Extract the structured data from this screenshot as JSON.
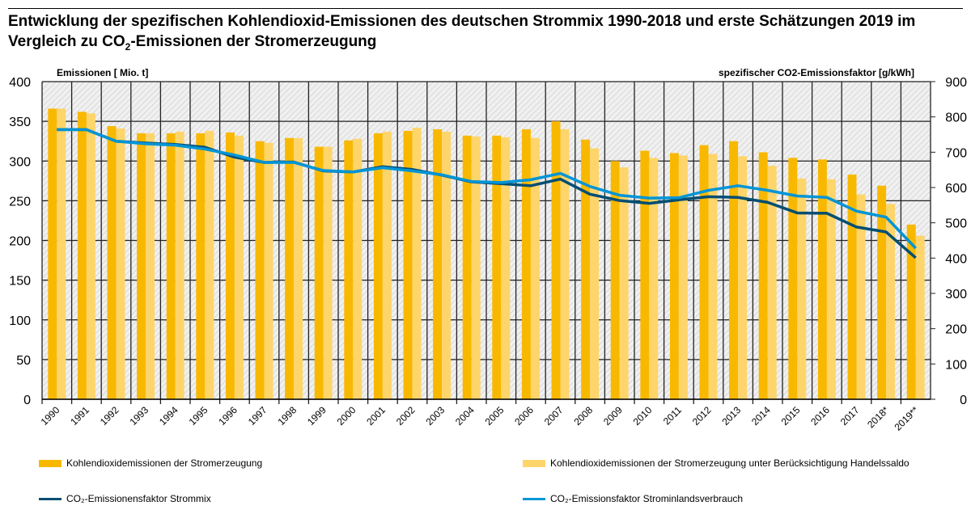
{
  "title_part1": "Entwicklung der spezifischen Kohlendioxid-Emissionen des deutschen Strommix 1990-2018 und erste Schätzungen 2019 im Vergleich zu CO",
  "title_sub": "2",
  "title_part2": "-Emissionen der Stromerzeugung",
  "chart_data": {
    "type": "bar+line",
    "ylabel_left": "Emissionen [ Mio. t]",
    "ylabel_right": "spezifischer CO2-Emissionsfaktor [g/kWh]",
    "ylim_left": [
      0,
      400
    ],
    "ylim_right": [
      0,
      900
    ],
    "yticks_left": [
      0,
      50,
      100,
      150,
      200,
      250,
      300,
      350,
      400
    ],
    "yticks_right": [
      0,
      100,
      200,
      300,
      400,
      500,
      600,
      700,
      800,
      900
    ],
    "grid": true,
    "categories": [
      "1990",
      "1991",
      "1992",
      "1993",
      "1994",
      "1995",
      "1996",
      "1997",
      "1998",
      "1999",
      "2000",
      "2001",
      "2002",
      "2003",
      "2004",
      "2005",
      "2006",
      "2007",
      "2008",
      "2009",
      "2010",
      "2011",
      "2012",
      "2013",
      "2014",
      "2015",
      "2016",
      "2017",
      "2018*",
      "2019**"
    ],
    "bars": [
      {
        "name": "Kohlendioxidemissionen der Stromerzeugung",
        "color": "#f9b800",
        "axis": "left",
        "values": [
          366,
          362,
          344,
          335,
          335,
          335,
          336,
          325,
          329,
          318,
          326,
          335,
          338,
          340,
          332,
          332,
          340,
          350,
          327,
          300,
          313,
          310,
          320,
          325,
          311,
          304,
          302,
          283,
          269,
          220
        ]
      },
      {
        "name": "Kohlendioxidemissionen der Stromerzeugung unter Berücksichtigung Handelssaldo",
        "color": "#fdd56b",
        "axis": "left",
        "values": [
          366,
          360,
          341,
          335,
          337,
          338,
          332,
          323,
          329,
          318,
          328,
          337,
          342,
          337,
          331,
          330,
          329,
          340,
          316,
          292,
          304,
          307,
          309,
          306,
          294,
          278,
          277,
          258,
          246,
          206
        ]
      }
    ],
    "lines": [
      {
        "name": "CO₂-Emissionensfaktor Strommix",
        "color": "#004e73",
        "axis": "right",
        "values": [
          764,
          764,
          731,
          726,
          722,
          714,
          686,
          671,
          672,
          647,
          644,
          659,
          651,
          635,
          616,
          611,
          605,
          624,
          581,
          563,
          555,
          565,
          574,
          572,
          558,
          528,
          527,
          488,
          474,
          401
        ]
      },
      {
        "name": "CO₂-Emissionsfaktor Strominlandsverbrauch",
        "color": "#0095d6",
        "axis": "right",
        "values": [
          764,
          764,
          731,
          724,
          720,
          709,
          692,
          671,
          671,
          648,
          644,
          656,
          647,
          636,
          617,
          614,
          622,
          640,
          603,
          578,
          570,
          571,
          592,
          605,
          592,
          576,
          572,
          533,
          516,
          428
        ]
      }
    ],
    "legend": "bottom"
  }
}
